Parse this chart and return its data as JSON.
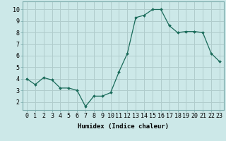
{
  "x": [
    0,
    1,
    2,
    3,
    4,
    5,
    6,
    7,
    8,
    9,
    10,
    11,
    12,
    13,
    14,
    15,
    16,
    17,
    18,
    19,
    20,
    21,
    22,
    23
  ],
  "y": [
    4.0,
    3.5,
    4.1,
    3.9,
    3.2,
    3.2,
    3.0,
    1.6,
    2.5,
    2.5,
    2.8,
    4.6,
    6.2,
    9.3,
    9.5,
    10.0,
    10.0,
    8.6,
    8.0,
    8.1,
    8.1,
    8.0,
    6.2,
    5.5
  ],
  "line_color": "#1a6b5a",
  "marker_color": "#1a6b5a",
  "bg_color": "#cce8e8",
  "grid_color": "#b0cccc",
  "xlabel": "Humidex (Indice chaleur)",
  "xlabel_fontsize": 6.5,
  "tick_fontsize": 6,
  "ylim": [
    1.3,
    10.7
  ],
  "xlim": [
    -0.5,
    23.5
  ],
  "yticks": [
    2,
    3,
    4,
    5,
    6,
    7,
    8,
    9,
    10
  ],
  "xticks": [
    0,
    1,
    2,
    3,
    4,
    5,
    6,
    7,
    8,
    9,
    10,
    11,
    12,
    13,
    14,
    15,
    16,
    17,
    18,
    19,
    20,
    21,
    22,
    23
  ]
}
